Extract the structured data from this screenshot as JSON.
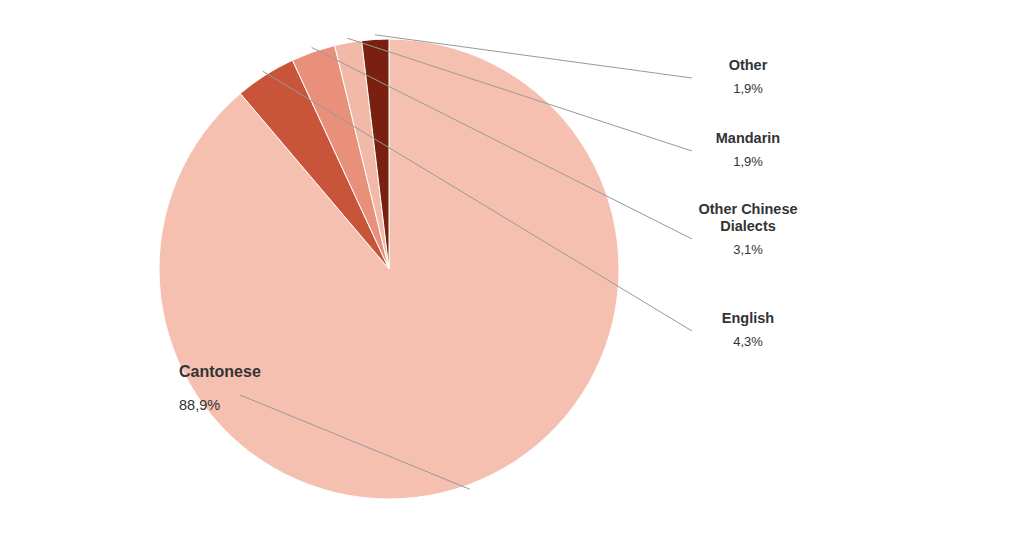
{
  "chart_data": {
    "type": "pie",
    "categories": [
      "Cantonese",
      "English",
      "Other Chinese\nDialects",
      "Mandarin",
      "Other"
    ],
    "values": [
      88.9,
      4.3,
      3.1,
      1.9,
      1.9
    ],
    "value_labels": [
      "88,9%",
      "4,3%",
      "3,1%",
      "1,9%",
      "1,9%"
    ],
    "colors": [
      "#f5c0b0",
      "#c8553a",
      "#e8907a",
      "#f2b8a8",
      "#7a2010"
    ]
  }
}
